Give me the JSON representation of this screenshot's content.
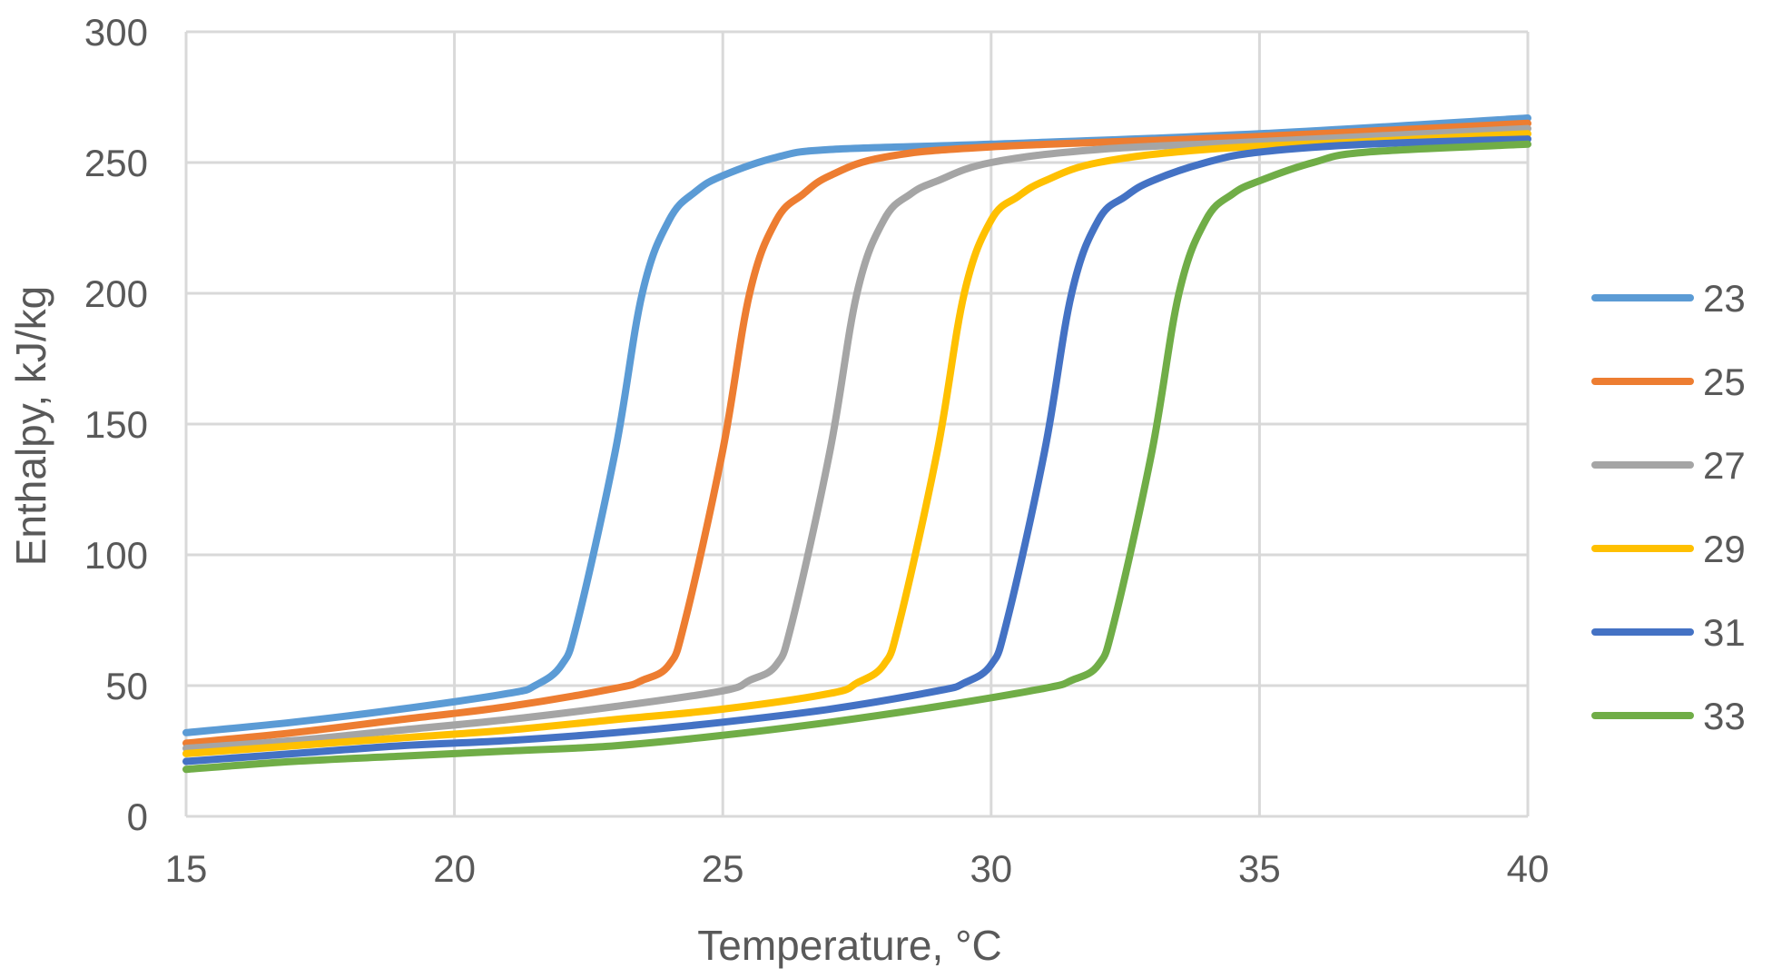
{
  "chart_data": {
    "type": "line",
    "title": "",
    "xlabel": "Temperature, °C",
    "ylabel": "Enthalpy, kJ/kg",
    "xlim": [
      15,
      40
    ],
    "ylim": [
      0,
      300
    ],
    "xticks": [
      15,
      20,
      25,
      30,
      35,
      40
    ],
    "yticks": [
      0,
      50,
      100,
      150,
      200,
      250,
      300
    ],
    "grid": true,
    "legend_position": "right",
    "series": [
      {
        "name": "23",
        "color": "#5B9BD5",
        "x": [
          15,
          17,
          19,
          21,
          21.5,
          22,
          22.3,
          23,
          23.5,
          24,
          24.5,
          25,
          26,
          27,
          30,
          35,
          40
        ],
        "y": [
          32,
          36,
          41,
          47,
          50,
          58,
          75,
          140,
          200,
          228,
          239,
          245,
          252,
          255,
          257,
          261,
          267
        ]
      },
      {
        "name": "25",
        "color": "#ED7D31",
        "x": [
          15,
          17,
          19,
          21,
          23,
          23.5,
          24,
          24.3,
          25,
          25.5,
          26,
          26.5,
          27,
          28,
          30,
          35,
          40
        ],
        "y": [
          28,
          32,
          37,
          42,
          49,
          52,
          58,
          75,
          140,
          200,
          228,
          238,
          245,
          252,
          256,
          260,
          265
        ]
      },
      {
        "name": "27",
        "color": "#A5A5A5",
        "x": [
          15,
          17,
          19,
          21,
          23,
          25,
          25.5,
          26,
          26.3,
          27,
          27.5,
          28,
          28.5,
          29,
          30,
          32,
          35,
          40
        ],
        "y": [
          26,
          29,
          33,
          37,
          42,
          48,
          52,
          58,
          75,
          140,
          200,
          228,
          238,
          243,
          250,
          255,
          258,
          263
        ]
      },
      {
        "name": "29",
        "color": "#FFC000",
        "x": [
          15,
          17,
          19,
          21,
          23,
          25,
          27,
          27.5,
          28,
          28.3,
          29,
          29.5,
          30,
          30.5,
          31,
          32,
          34,
          37,
          40
        ],
        "y": [
          24,
          27,
          30,
          33,
          37,
          41,
          47,
          51,
          58,
          75,
          140,
          200,
          228,
          237,
          243,
          250,
          255,
          258,
          261
        ]
      },
      {
        "name": "31",
        "color": "#4472C4",
        "x": [
          15,
          17,
          19,
          21,
          23,
          25,
          27,
          29,
          29.5,
          30,
          30.3,
          31,
          31.5,
          32,
          32.5,
          33,
          34,
          35,
          37,
          40
        ],
        "y": [
          21,
          24,
          27,
          29,
          32,
          36,
          41,
          48,
          51,
          58,
          75,
          140,
          200,
          228,
          237,
          243,
          250,
          254,
          257,
          259
        ]
      },
      {
        "name": "33",
        "color": "#70AD47",
        "x": [
          15,
          17,
          19,
          21,
          23,
          25,
          27,
          29,
          31,
          31.5,
          32,
          32.3,
          33,
          33.5,
          34,
          34.5,
          35,
          36,
          37,
          40
        ],
        "y": [
          18,
          21,
          23,
          25,
          27,
          31,
          36,
          42,
          49,
          52,
          58,
          75,
          140,
          200,
          228,
          238,
          243,
          250,
          254,
          257
        ]
      }
    ]
  }
}
